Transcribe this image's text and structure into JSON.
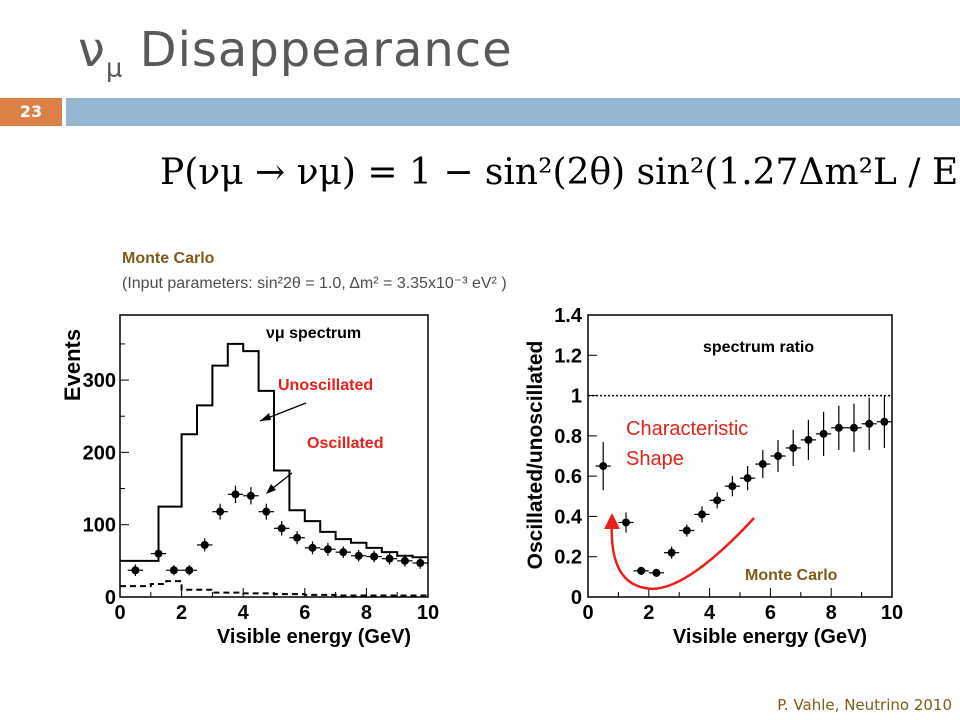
{
  "slide": {
    "title_main": "ν",
    "title_sub": "μ",
    "title_rest": " Disappearance",
    "number": "23",
    "equation": "P(νμ → νμ) = 1 − sin²(2θ) sin²(1.27Δm²L / E)",
    "mc_title": "Monte Carlo",
    "mc_params": "(Input parameters:  sin²2θ = 1.0,  Δm² = 3.35x10⁻³ eV² )",
    "footer": "P. Vahle, Neutrino 2010"
  },
  "colors": {
    "accent_orange": "#dd8047",
    "accent_blue": "#94b6d2",
    "annotation_red": "#e8201a"
  },
  "chart_data": [
    {
      "type": "line",
      "xlabel": "Visible energy (GeV)",
      "ylabel": "Events",
      "xlim": [
        0,
        10
      ],
      "ylim": [
        0,
        390
      ],
      "xticks": [
        "0",
        "2",
        "4",
        "6",
        "8",
        "10"
      ],
      "yticks": [
        "0",
        "100",
        "200",
        "300"
      ],
      "label_spectrum": "νμ spectrum",
      "label_unosc": "Unoscillated",
      "label_osc": "Oscillated",
      "unoscillated_edges": [
        0,
        1.25,
        2,
        2.5,
        3,
        3.5,
        4,
        4.5,
        5,
        5.5,
        6,
        6.5,
        7,
        7.5,
        8,
        8.5,
        9,
        9.5,
        10
      ],
      "unoscillated_values": [
        50,
        125,
        225,
        265,
        320,
        350,
        340,
        285,
        175,
        120,
        105,
        90,
        80,
        75,
        68,
        62,
        57,
        55
      ],
      "background_edges": [
        0,
        1,
        1.5,
        2,
        3,
        4,
        5,
        6,
        7,
        8,
        9,
        10
      ],
      "background_values": [
        15,
        18,
        22,
        10,
        6,
        5,
        4,
        3,
        2,
        2,
        2
      ],
      "oscillated_x": [
        0.5,
        1.25,
        1.75,
        2.25,
        2.75,
        3.25,
        3.75,
        4.25,
        4.75,
        5.25,
        5.75,
        6.25,
        6.75,
        7.25,
        7.75,
        8.25,
        8.75,
        9.25,
        9.75
      ],
      "oscillated_y": [
        37,
        60,
        37,
        37,
        72,
        118,
        142,
        140,
        118,
        95,
        82,
        68,
        66,
        62,
        57,
        56,
        53,
        50,
        47
      ],
      "oscillated_err": [
        8,
        8,
        7,
        7,
        9,
        11,
        12,
        12,
        11,
        10,
        9,
        9,
        9,
        8,
        8,
        8,
        8,
        8,
        8
      ]
    },
    {
      "type": "scatter",
      "xlabel": "Visible energy (GeV)",
      "ylabel": "Oscillated/unoscillated",
      "xlim": [
        0,
        10
      ],
      "ylim": [
        0,
        1.4
      ],
      "xticks": [
        "0",
        "2",
        "4",
        "6",
        "8",
        "10"
      ],
      "yticks": [
        "0",
        "0.2",
        "0.4",
        "0.6",
        "0.8",
        "1",
        "1.2",
        "1.4"
      ],
      "title_label": "spectrum ratio",
      "mc_label": "Monte Carlo",
      "annotation": "Characteristic Shape",
      "reference_y": 1,
      "x": [
        0.5,
        1.25,
        1.75,
        2.25,
        2.75,
        3.25,
        3.75,
        4.25,
        4.75,
        5.25,
        5.75,
        6.25,
        6.75,
        7.25,
        7.75,
        8.25,
        8.75,
        9.25,
        9.75
      ],
      "y": [
        0.65,
        0.37,
        0.13,
        0.12,
        0.22,
        0.33,
        0.41,
        0.48,
        0.55,
        0.59,
        0.66,
        0.7,
        0.74,
        0.78,
        0.81,
        0.84,
        0.84,
        0.86,
        0.87
      ],
      "err": [
        0.12,
        0.05,
        0.02,
        0.02,
        0.03,
        0.03,
        0.04,
        0.04,
        0.05,
        0.06,
        0.07,
        0.08,
        0.09,
        0.1,
        0.11,
        0.11,
        0.12,
        0.13,
        0.13
      ]
    }
  ]
}
